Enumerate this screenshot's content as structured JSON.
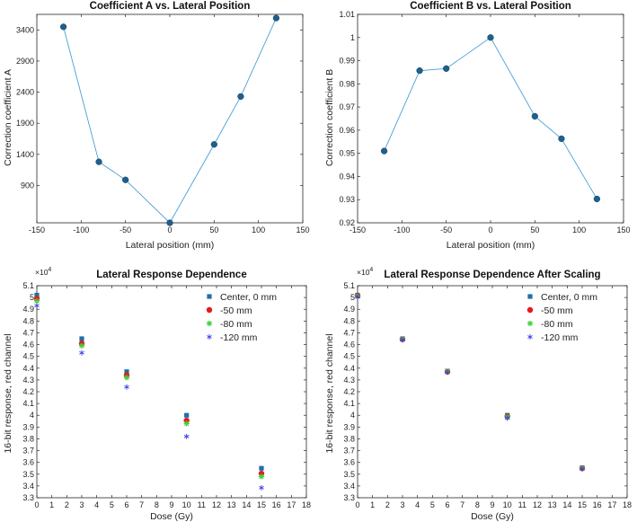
{
  "chart_data": [
    {
      "type": "line",
      "title": "Coefficient A vs. Lateral Position",
      "xlabel": "Lateral position (mm)",
      "ylabel": "Correction coefficient A",
      "xlim": [
        -150,
        150
      ],
      "ylim": [
        300,
        3650
      ],
      "xticks": [
        -150,
        -100,
        -50,
        0,
        50,
        100,
        150
      ],
      "yticks": [
        900,
        1400,
        1900,
        2400,
        2900,
        3400
      ],
      "series": [
        {
          "name": "A",
          "x": [
            -120,
            -80,
            -50,
            0,
            50,
            80,
            120
          ],
          "y": [
            3450,
            1280,
            990,
            300,
            1560,
            2330,
            3590
          ]
        }
      ],
      "colors": {
        "line": "#4a9fd8",
        "marker": "#1f5f8b"
      }
    },
    {
      "type": "line",
      "title": "Coefficient B vs. Lateral Position",
      "xlabel": "Lateral position (mm)",
      "ylabel": "Correction coefficient B",
      "xlim": [
        -150,
        150
      ],
      "ylim": [
        0.92,
        1.01
      ],
      "xticks": [
        -150,
        -100,
        -50,
        0,
        50,
        100,
        150
      ],
      "yticks": [
        0.92,
        0.93,
        0.94,
        0.95,
        0.96,
        0.97,
        0.98,
        0.99,
        1,
        1.01
      ],
      "series": [
        {
          "name": "B",
          "x": [
            -120,
            -80,
            -50,
            0,
            50,
            80,
            120
          ],
          "y": [
            0.951,
            0.9857,
            0.9866,
            1.0,
            0.966,
            0.9563,
            0.9303
          ]
        }
      ],
      "colors": {
        "line": "#4a9fd8",
        "marker": "#1f5f8b"
      }
    },
    {
      "type": "scatter",
      "title": "Lateral Response Dependence",
      "xlabel": "Dose (Gy)",
      "ylabel": "16-bit response, red channel",
      "exponent": "×10",
      "exponent_power": "4",
      "xlim": [
        0,
        18
      ],
      "ylim": [
        3.3,
        5.1
      ],
      "xticks": [
        0,
        1,
        2,
        3,
        4,
        5,
        6,
        7,
        8,
        9,
        10,
        11,
        12,
        13,
        14,
        15,
        16,
        17,
        18
      ],
      "yticks": [
        3.3,
        3.4,
        3.5,
        3.6,
        3.7,
        3.8,
        3.9,
        4,
        4.1,
        4.2,
        4.3,
        4.4,
        4.5,
        4.6,
        4.7,
        4.8,
        4.9,
        5,
        5.1
      ],
      "legend_position": "top-right",
      "series": [
        {
          "name": "Center, 0 mm",
          "marker": "square",
          "color": "#1f6fa8",
          "x": [
            0,
            3,
            6,
            10,
            15
          ],
          "y": [
            5.02,
            4.65,
            4.37,
            4.0,
            3.55
          ]
        },
        {
          "name": "-50 mm",
          "marker": "dot",
          "color": "#e8191b",
          "x": [
            0,
            3,
            6,
            10,
            15
          ],
          "y": [
            4.99,
            4.61,
            4.34,
            3.955,
            3.505
          ]
        },
        {
          "name": "-80 mm",
          "marker": "star",
          "color": "#3cd23c",
          "x": [
            0,
            3,
            6,
            10,
            15
          ],
          "y": [
            4.97,
            4.59,
            4.32,
            3.93,
            3.48
          ]
        },
        {
          "name": "-120 mm",
          "marker": "asterisk",
          "color": "#3b3be8",
          "x": [
            0,
            3,
            6,
            10,
            15
          ],
          "y": [
            4.93,
            4.53,
            4.24,
            3.82,
            3.385
          ]
        }
      ]
    },
    {
      "type": "scatter",
      "title": "Lateral Response Dependence After Scaling",
      "xlabel": "Dose (Gy)",
      "ylabel": "16-bit response, red channel",
      "exponent": "×10",
      "exponent_power": "4",
      "xlim": [
        0,
        18
      ],
      "ylim": [
        3.3,
        5.1
      ],
      "xticks": [
        0,
        1,
        2,
        3,
        4,
        5,
        6,
        7,
        8,
        9,
        10,
        11,
        12,
        13,
        14,
        15,
        16,
        17,
        18
      ],
      "yticks": [
        3.3,
        3.4,
        3.5,
        3.6,
        3.7,
        3.8,
        3.9,
        4,
        4.1,
        4.2,
        4.3,
        4.4,
        4.5,
        4.6,
        4.7,
        4.8,
        4.9,
        5,
        5.1
      ],
      "legend_position": "top-right",
      "series": [
        {
          "name": "Center, 0 mm",
          "marker": "square",
          "color": "#1f6fa8",
          "x": [
            0,
            3,
            6,
            10,
            15
          ],
          "y": [
            5.02,
            4.65,
            4.375,
            4.0,
            3.555
          ]
        },
        {
          "name": "-50 mm",
          "marker": "dot",
          "color": "#e8191b",
          "x": [
            0,
            3,
            6,
            10,
            15
          ],
          "y": [
            5.015,
            4.645,
            4.37,
            3.99,
            3.55
          ]
        },
        {
          "name": "-80 mm",
          "marker": "star",
          "color": "#3cd23c",
          "x": [
            0,
            3,
            6,
            10,
            15
          ],
          "y": [
            5.01,
            4.645,
            4.37,
            3.985,
            3.55
          ]
        },
        {
          "name": "-120 mm",
          "marker": "asterisk",
          "color": "#3b3be8",
          "x": [
            0,
            3,
            6,
            10,
            15
          ],
          "y": [
            5.005,
            4.64,
            4.365,
            3.975,
            3.545
          ]
        }
      ]
    }
  ]
}
